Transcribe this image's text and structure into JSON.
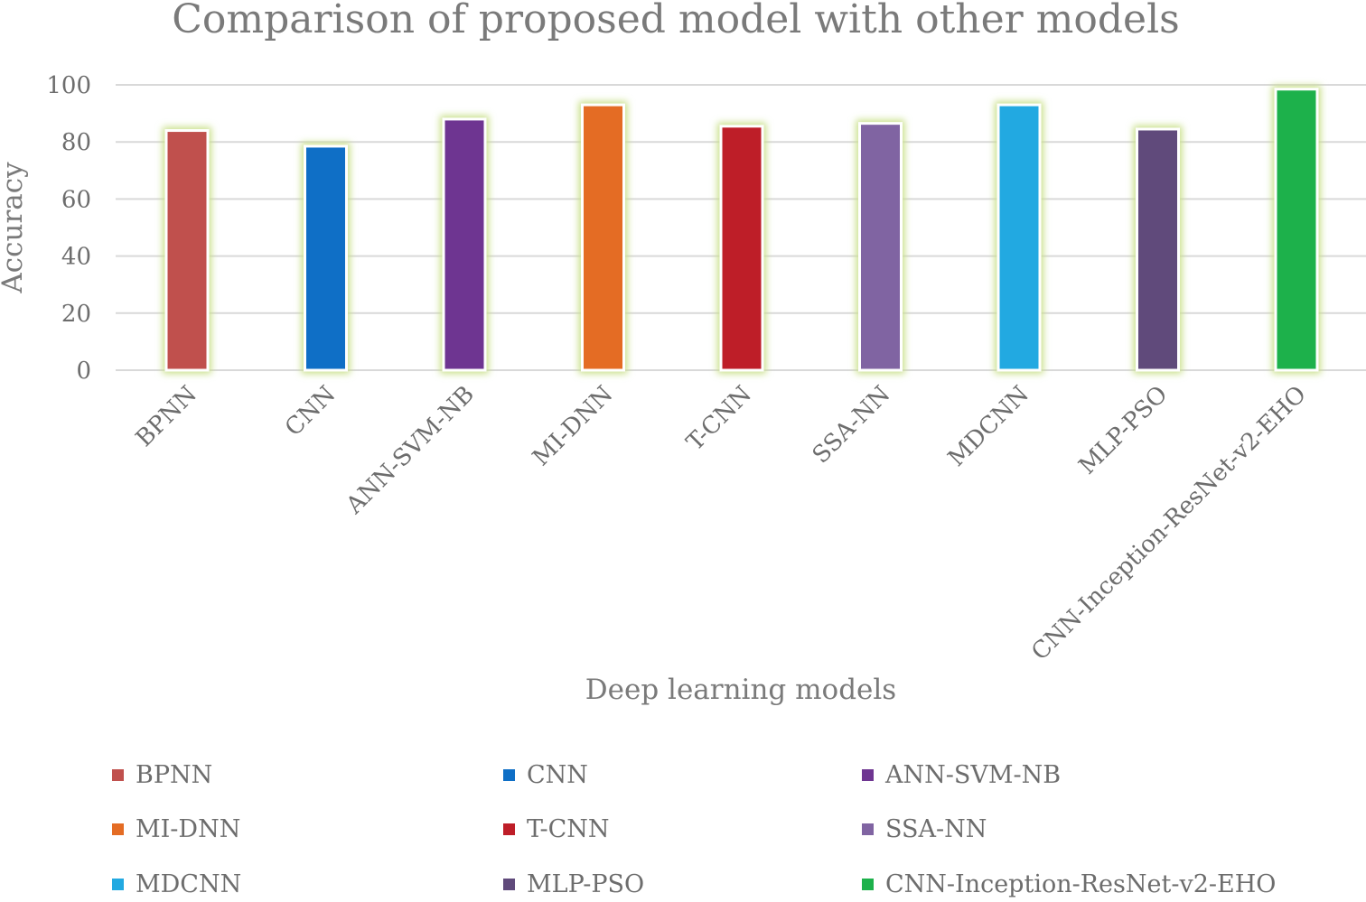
{
  "chart_data": {
    "type": "bar",
    "title": "Comparison of proposed model with other models",
    "xlabel": "Deep learning models",
    "ylabel": "Accuracy",
    "ylim": [
      0,
      100
    ],
    "yticks": [
      0,
      20,
      40,
      60,
      80,
      100
    ],
    "grid": true,
    "legend_position": "bottom",
    "categories": [
      "BPNN",
      "CNN",
      "ANN-SVM-NB",
      "MI-DNN",
      "T-CNN",
      "SSA-NN",
      "MDCNN",
      "MLP-PSO",
      "CNN-Inception-ResNet-v2-EHO"
    ],
    "values": [
      84,
      78.5,
      88,
      93,
      85.5,
      86.5,
      93,
      84.5,
      98.5
    ],
    "colors": [
      "#c0504d",
      "#0f6fc6",
      "#6e3591",
      "#e46c24",
      "#be1e28",
      "#8064a2",
      "#22a9e1",
      "#604a7b",
      "#1db14b"
    ]
  }
}
